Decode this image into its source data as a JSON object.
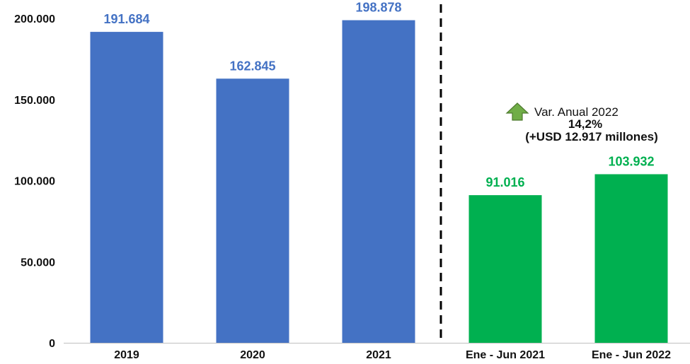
{
  "chart_data": {
    "type": "bar",
    "categories": [
      "2019",
      "2020",
      "2021",
      "Ene - Jun 2021",
      "Ene - Jun 2022"
    ],
    "values": [
      191684,
      162845,
      198878,
      91016,
      103932
    ],
    "value_labels": [
      "191.684",
      "162.845",
      "198.878",
      "91.016",
      "103.932"
    ],
    "bar_colors": [
      "#4472c4",
      "#4472c4",
      "#4472c4",
      "#00b050",
      "#00b050"
    ],
    "ylim": [
      0,
      200000
    ],
    "yticks": [
      0,
      50000,
      100000,
      150000,
      200000
    ],
    "ytick_labels": [
      "0",
      "50.000",
      "100.000",
      "150.000",
      "200.000"
    ],
    "grid": false,
    "divider": "dashed line between 2021 and Ene - Jun 2021",
    "annotation": {
      "icon": "up-arrow-icon",
      "icon_color": "#70ad47",
      "line1": "Var. Anual 2022",
      "line2": "14,2%",
      "line3": "(+USD 12.917 millones)"
    }
  }
}
